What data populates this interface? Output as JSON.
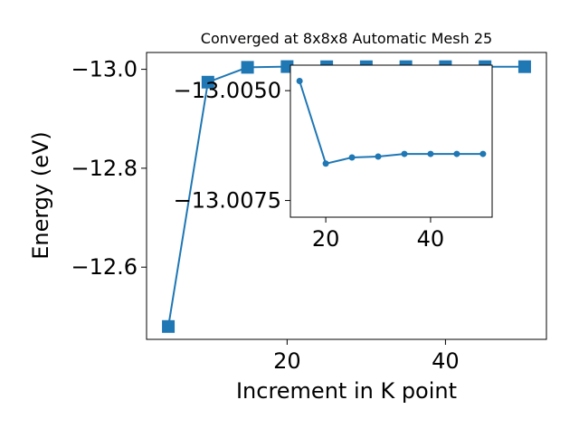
{
  "chart_data": [
    {
      "type": "line",
      "title": "Converged at 8x8x8 Automatic Mesh 25",
      "xlabel": "Increment in K point",
      "ylabel": "Energy (eV)",
      "xlim": [
        2.25,
        52.75
      ],
      "ylim": [
        -13.034,
        -12.454
      ],
      "xticks": [
        20,
        40
      ],
      "xtick_labels": [
        "20",
        "40"
      ],
      "yticks": [
        -12.6,
        -12.8,
        -13.0
      ],
      "ytick_labels": [
        "−12.6",
        "−12.8",
        "−13.0"
      ],
      "marker": "square",
      "color": "#1f77b4",
      "grid": false,
      "series": [
        {
          "x": [
            5,
            10,
            15,
            20,
            25,
            30,
            35,
            40,
            45,
            50
          ],
          "values": [
            -12.48,
            -12.974,
            -13.004,
            -13.0055,
            -13.0052,
            -13.0052,
            -13.0053,
            -13.0053,
            -13.0053,
            -13.0053
          ]
        }
      ]
    },
    {
      "type": "line",
      "title": "",
      "xlabel": "",
      "ylabel": "",
      "xlim": [
        13.25,
        51.75
      ],
      "ylim": [
        -13.00442,
        -13.00788
      ],
      "xticks": [
        20,
        40
      ],
      "xtick_labels": [
        "20",
        "40"
      ],
      "yticks": [
        -13.0075,
        -13.005
      ],
      "ytick_labels": [
        "−13.0075",
        "−13.0050"
      ],
      "marker": "circle",
      "color": "#1f77b4",
      "grid": false,
      "series": [
        {
          "x": [
            15,
            20,
            25,
            30,
            35,
            40,
            45,
            50
          ],
          "values": [
            -13.00478,
            -13.00666,
            -13.00652,
            -13.0065,
            -13.00644,
            -13.00644,
            -13.00644,
            -13.00644
          ]
        }
      ]
    }
  ]
}
